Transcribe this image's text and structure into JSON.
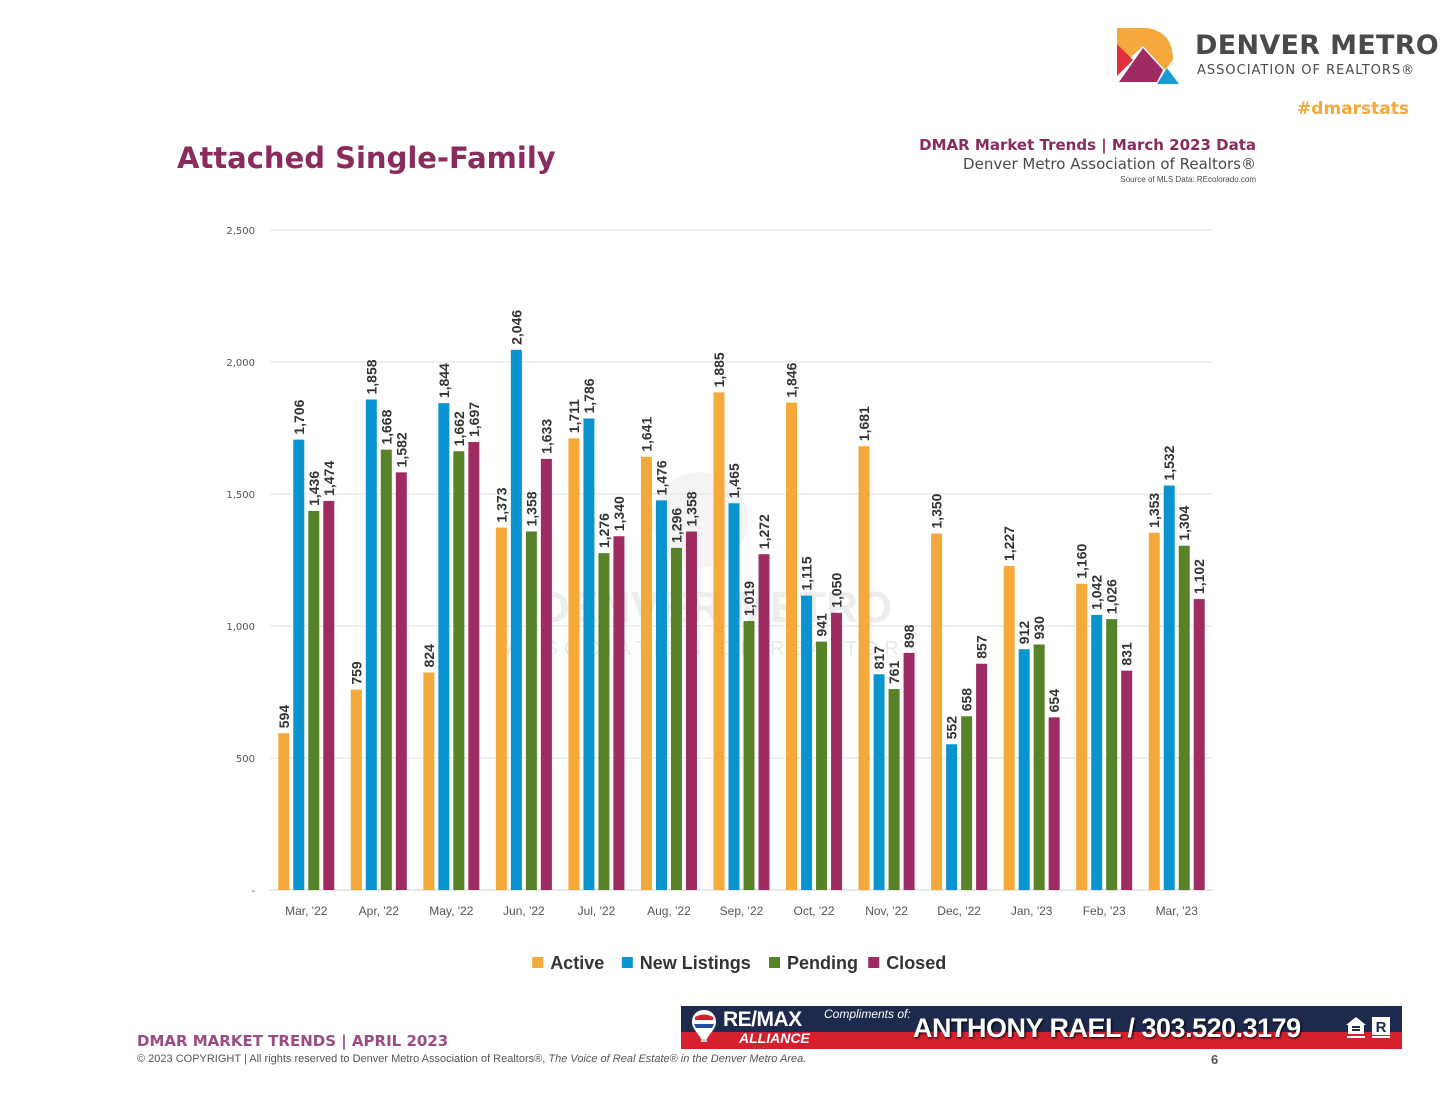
{
  "brand": {
    "name": "DENVER METRO",
    "subtitle": "ASSOCIATION OF REALTORS®",
    "hashtag": "#dmarstats"
  },
  "page": {
    "title": "Attached Single-Family",
    "trend_title": "DMAR Market Trends | March 2023 Data",
    "trend_subtitle": "Denver Metro Association of Realtors®",
    "source": "Source of MLS Data: REcolorado.com"
  },
  "footer": {
    "title": "DMAR MARKET TRENDS | APRIL 2023",
    "copyright_prefix": "© 2023 COPYRIGHT | All rights reserved to Denver Metro Association of Realtors®, ",
    "copyright_italic": "The Voice of Real Estate® in the Denver Metro Area.",
    "page_number": "6"
  },
  "banner": {
    "brand": "RE/MAX",
    "brand_sub": "ALLIANCE",
    "compliments": "Compliments of:",
    "agent": "ANTHONY RAEL / 303.520.3179",
    "colors": {
      "top": "#1d2a4d",
      "bottom": "#d7202e"
    }
  },
  "watermark": {
    "line1": "DENVER METRO",
    "line2": "ASSOCIATION OF REALTORS"
  },
  "chart_data": {
    "type": "bar",
    "title": "Attached Single-Family",
    "xlabel": "",
    "ylabel": "",
    "ylim": [
      0,
      2500
    ],
    "yticks": [
      0,
      500,
      1000,
      1500,
      2000,
      2500
    ],
    "ytick_labels": [
      "-",
      "500",
      "1,000",
      "1,500",
      "2,000",
      "2,500"
    ],
    "grid": true,
    "legend_position": "bottom-center",
    "categories": [
      "Mar, '22",
      "Apr, '22",
      "May, '22",
      "Jun, '22",
      "Jul, '22",
      "Aug, '22",
      "Sep, '22",
      "Oct, '22",
      "Nov, '22",
      "Dec, '22",
      "Jan, '23",
      "Feb, '23",
      "Mar, '23"
    ],
    "series": [
      {
        "name": "Active",
        "color": "#f5a93a",
        "values": [
          594,
          759,
          824,
          1373,
          1711,
          1641,
          1885,
          1846,
          1681,
          1350,
          1227,
          1160,
          1353
        ]
      },
      {
        "name": "New Listings",
        "color": "#0a94cf",
        "values": [
          1706,
          1858,
          1844,
          2046,
          1786,
          1476,
          1465,
          1115,
          817,
          552,
          912,
          1042,
          1532
        ]
      },
      {
        "name": "Pending",
        "color": "#578227",
        "values": [
          1436,
          1668,
          1662,
          1358,
          1276,
          1296,
          1019,
          941,
          761,
          658,
          930,
          1026,
          1304
        ]
      },
      {
        "name": "Closed",
        "color": "#9e2c62",
        "values": [
          1474,
          1582,
          1697,
          1633,
          1340,
          1358,
          1272,
          1050,
          898,
          857,
          654,
          831,
          1102
        ]
      }
    ]
  }
}
